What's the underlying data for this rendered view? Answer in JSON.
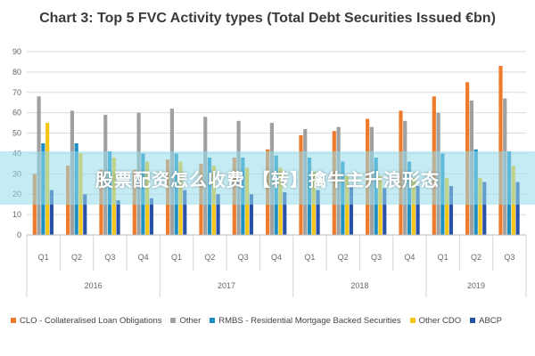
{
  "chart_data": {
    "type": "bar",
    "title": "Chart 3: Top 5 FVC Activity types (Total Debt Securities Issued €bn)",
    "ylim": [
      0,
      90
    ],
    "yticks": [
      0,
      10,
      20,
      30,
      40,
      50,
      60,
      70,
      80,
      90
    ],
    "grid": true,
    "legend_position": "bottom",
    "categories": [
      "Q1",
      "Q2",
      "Q3",
      "Q4",
      "Q1",
      "Q2",
      "Q3",
      "Q4",
      "Q1",
      "Q2",
      "Q3",
      "Q4",
      "Q1",
      "Q2",
      "Q3"
    ],
    "years": [
      {
        "label": "2016",
        "span": 4
      },
      {
        "label": "2017",
        "span": 4
      },
      {
        "label": "2018",
        "span": 4
      },
      {
        "label": "2019",
        "span": 3
      }
    ],
    "series": [
      {
        "name": "CLO - Collateralised Loan Obligations",
        "color": "#f07a2c",
        "values": [
          30,
          34,
          32,
          32,
          37,
          35,
          38,
          42,
          49,
          51,
          57,
          61,
          68,
          75,
          83
        ]
      },
      {
        "name": "Other",
        "color": "#a0a0a0",
        "values": [
          68,
          61,
          59,
          60,
          62,
          58,
          56,
          55,
          52,
          53,
          53,
          56,
          60,
          66,
          67
        ]
      },
      {
        "name": "RMBS - Residential Mortgage Backed Securities",
        "color": "#1e8fc0",
        "values": [
          45,
          45,
          41,
          40,
          40,
          38,
          38,
          39,
          38,
          36,
          38,
          36,
          40,
          42,
          41
        ]
      },
      {
        "name": "Other CDO",
        "color": "#f5c518",
        "values": [
          55,
          40,
          38,
          36,
          36,
          34,
          33,
          33,
          31,
          29,
          29,
          28,
          28,
          28,
          34
        ]
      },
      {
        "name": "ABCP",
        "color": "#2a52a8",
        "values": [
          22,
          20,
          17,
          18,
          22,
          20,
          20,
          21,
          22,
          24,
          23,
          24,
          24,
          26,
          26
        ]
      }
    ]
  },
  "banner": {
    "text": "股票配资怎么收费 【转】擒牛主升浪形态"
  }
}
